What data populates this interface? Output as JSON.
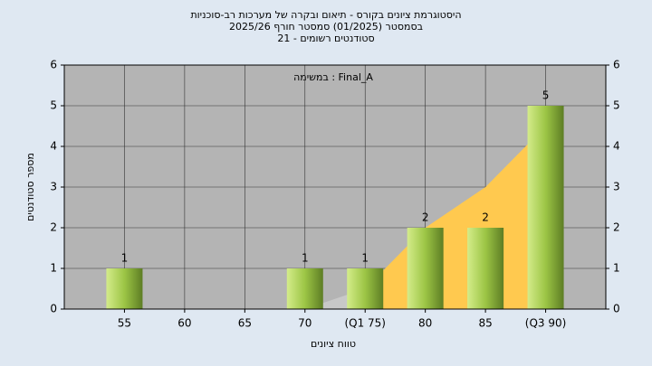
{
  "chart_data": {
    "type": "bar",
    "title_lines": [
      "היסטוגרמת ציונים בקורס - תיאום ובקרה של מערכות רב-סוכניות",
      "בסמסטר  (01/2025)  סמסטר חורף 2025/26",
      "סטודנטים רשומים - 21"
    ],
    "annotation": "במשימה : Final_A",
    "x_label": "טווח ציונים",
    "y_label": "מספר סטודנטים",
    "categories": [
      "55",
      "60",
      "65",
      "70",
      "(Q1 75)",
      "80",
      "85",
      "(Q3 90)"
    ],
    "values": [
      1,
      0,
      0,
      1,
      1,
      2,
      2,
      5
    ],
    "color": "#9cc545",
    "areas": [
      {
        "color": "#c8c8c8",
        "values": [
          null,
          null,
          null,
          0,
          0.5,
          null,
          null,
          null
        ]
      },
      {
        "color": "#ffc94f",
        "values": [
          null,
          null,
          null,
          null,
          0.5,
          2,
          3,
          4.5
        ]
      }
    ],
    "ylim": [
      0,
      6
    ],
    "yticks": [
      0,
      1,
      2,
      3,
      4,
      5,
      6
    ],
    "grid": true
  }
}
